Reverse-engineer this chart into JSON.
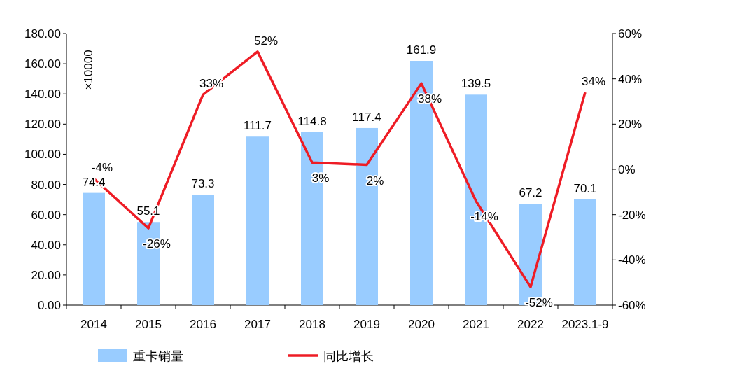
{
  "chart_data": {
    "type": "bar",
    "categories": [
      "2014",
      "2015",
      "2016",
      "2017",
      "2018",
      "2019",
      "2020",
      "2021",
      "2022",
      "2023.1-9"
    ],
    "series": [
      {
        "name": "重卡销量",
        "color": "#99ccff",
        "values": [
          74.4,
          55.1,
          73.3,
          111.7,
          114.8,
          117.4,
          161.9,
          139.5,
          67.2,
          70.1
        ]
      },
      {
        "name": "同比增长",
        "type": "line",
        "axis": "y2",
        "color": "#ee1c25",
        "values": [
          -4,
          -26,
          33,
          52,
          3,
          2,
          38,
          -14,
          -52,
          34
        ],
        "value_labels": [
          "-4%",
          "-26%",
          "33%",
          "52%",
          "3%",
          "2%",
          "38%",
          "-14%",
          "-52%",
          "34%"
        ]
      }
    ],
    "data_labels": true,
    "ylim": [
      0,
      180
    ],
    "yticks": [
      {
        "value": 0,
        "label": "0.00"
      },
      {
        "value": 20,
        "label": "20.00"
      },
      {
        "value": 40,
        "label": "40.00"
      },
      {
        "value": 60,
        "label": "60.00"
      },
      {
        "value": 80,
        "label": "80.00"
      },
      {
        "value": 100,
        "label": "100.00"
      },
      {
        "value": 120,
        "label": "120.00"
      },
      {
        "value": 140,
        "label": "140.00"
      },
      {
        "value": 160,
        "label": "160.00"
      },
      {
        "value": 180,
        "label": "180.00"
      }
    ],
    "y2lim": [
      -60,
      60
    ],
    "y2ticks": [
      {
        "value": -60,
        "label": "-60%"
      },
      {
        "value": -40,
        "label": "-40%"
      },
      {
        "value": -20,
        "label": "-20%"
      },
      {
        "value": 0,
        "label": "0%"
      },
      {
        "value": 20,
        "label": "20%"
      },
      {
        "value": 40,
        "label": "40%"
      },
      {
        "value": 60,
        "label": "60%"
      }
    ],
    "annotations": [
      "×10000"
    ],
    "legend": "bottom",
    "grid": false
  }
}
